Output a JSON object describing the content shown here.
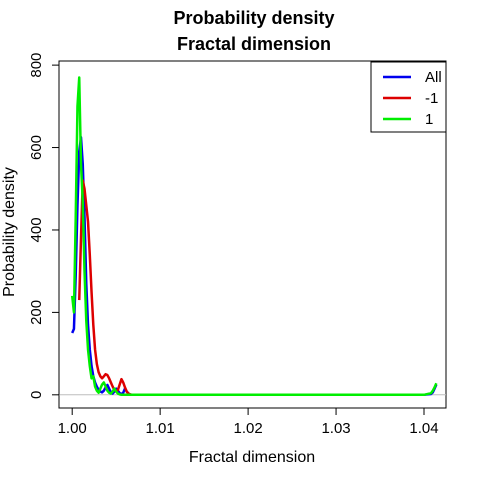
{
  "chart_data": {
    "type": "line",
    "title": "Probability density",
    "subtitle": "Fractal dimension",
    "xlabel": "Fractal dimension",
    "ylabel": "Probability density",
    "xlim": [
      0.9985,
      1.0425
    ],
    "ylim": [
      -32,
      810
    ],
    "xticks": [
      1.0,
      1.01,
      1.02,
      1.03,
      1.04
    ],
    "xtick_labels": [
      "1.00",
      "1.01",
      "1.02",
      "1.03",
      "1.04"
    ],
    "yticks": [
      0,
      200,
      400,
      600,
      800
    ],
    "ytick_labels": [
      "0",
      "200",
      "400",
      "600",
      "800"
    ],
    "baseline": 0,
    "grid": false,
    "legend_position": "top-right",
    "series": [
      {
        "name": "All",
        "color": "#0000ee",
        "x": [
          1.0,
          1.0002,
          1.0004,
          1.0006,
          1.0008,
          1.001,
          1.0012,
          1.0014,
          1.0016,
          1.0018,
          1.002,
          1.0022,
          1.0024,
          1.0026,
          1.0028,
          1.003,
          1.0032,
          1.0034,
          1.0036,
          1.0038,
          1.004,
          1.0042,
          1.0044,
          1.0046,
          1.0048,
          1.005,
          1.0052,
          1.0054,
          1.0056,
          1.0058,
          1.006,
          1.0062,
          1.0064,
          1.0066,
          1.007,
          1.01,
          1.02,
          1.03,
          1.04,
          1.0408,
          1.041,
          1.0412,
          1.0414
        ],
        "y": [
          150,
          160,
          290,
          460,
          590,
          625,
          560,
          430,
          270,
          170,
          110,
          70,
          45,
          30,
          20,
          12,
          8,
          6,
          10,
          18,
          24,
          15,
          6,
          3,
          8,
          15,
          10,
          4,
          2,
          5,
          15,
          8,
          3,
          0,
          0,
          0,
          0,
          0,
          0,
          2,
          6,
          15,
          25
        ]
      },
      {
        "name": "-1",
        "color": "#dd0000",
        "x": [
          1.0008,
          1.001,
          1.0012,
          1.0014,
          1.0016,
          1.0018,
          1.002,
          1.0022,
          1.0024,
          1.0026,
          1.0028,
          1.003,
          1.0032,
          1.0034,
          1.0036,
          1.0038,
          1.004,
          1.0042,
          1.0044,
          1.0046,
          1.0048,
          1.005,
          1.0052,
          1.0054,
          1.0056,
          1.0058,
          1.006,
          1.0062,
          1.0064,
          1.0066,
          1.0068
        ],
        "y": [
          230,
          380,
          520,
          500,
          460,
          420,
          340,
          250,
          170,
          110,
          75,
          55,
          45,
          40,
          45,
          50,
          48,
          40,
          30,
          20,
          12,
          8,
          12,
          25,
          38,
          30,
          18,
          8,
          3,
          1,
          0
        ]
      },
      {
        "name": "1",
        "color": "#00ee00",
        "x": [
          1.0,
          1.0002,
          1.0004,
          1.0006,
          1.0008,
          1.001,
          1.0012,
          1.0014,
          1.0016,
          1.0018,
          1.002,
          1.0022,
          1.0024,
          1.0026,
          1.0028,
          1.003,
          1.0032,
          1.0034,
          1.0036,
          1.0038,
          1.004,
          1.0042,
          1.0044,
          1.0046,
          1.0048,
          1.005,
          1.0052,
          1.0054,
          1.0056,
          1.0058,
          1.006,
          1.0062,
          1.007,
          1.01,
          1.02,
          1.03,
          1.04,
          1.0408,
          1.041,
          1.0412,
          1.0414
        ],
        "y": [
          240,
          200,
          430,
          700,
          770,
          560,
          470,
          300,
          180,
          110,
          70,
          40,
          45,
          20,
          10,
          5,
          15,
          25,
          30,
          20,
          10,
          5,
          3,
          8,
          15,
          8,
          3,
          1,
          0,
          0,
          0,
          0,
          0,
          0,
          0,
          0,
          0,
          4,
          10,
          18,
          28
        ]
      }
    ]
  }
}
